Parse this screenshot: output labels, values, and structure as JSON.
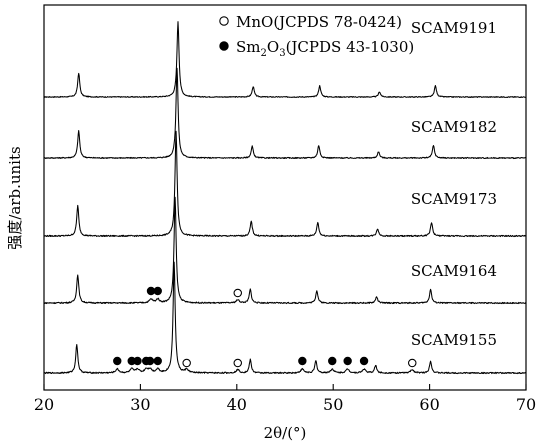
{
  "chart_data": {
    "type": "line",
    "xlabel": "2θ/(°)",
    "ylabel": "强度/arb.units",
    "xlim": [
      20,
      70
    ],
    "xticks": [
      20,
      30,
      40,
      50,
      60,
      70
    ],
    "yticks_shown": false,
    "grid": false,
    "legend_position": "top-center",
    "legend": [
      {
        "label": "MnO(JCPDS 78-0424)",
        "marker": "open-circle"
      },
      {
        "label_main": "Sm",
        "label_sub1": "2",
        "label_mid": "O",
        "label_sub2": "3",
        "label_tail": "(JCPDS 43-1030)",
        "marker": "filled-circle"
      }
    ],
    "series": [
      {
        "name": "SCAM9191",
        "peaks": [
          [
            23.6,
            32
          ],
          [
            33.9,
            100
          ],
          [
            41.7,
            14
          ],
          [
            48.6,
            15
          ],
          [
            54.8,
            7
          ],
          [
            60.6,
            15
          ]
        ],
        "mno_markers": [],
        "sm2o3_markers": []
      },
      {
        "name": "SCAM9182",
        "peaks": [
          [
            23.6,
            30
          ],
          [
            33.8,
            100
          ],
          [
            41.6,
            13
          ],
          [
            48.5,
            14
          ],
          [
            54.7,
            7
          ],
          [
            60.4,
            14
          ]
        ],
        "mno_markers": [],
        "sm2o3_markers": []
      },
      {
        "name": "SCAM9173",
        "peaks": [
          [
            23.5,
            29
          ],
          [
            33.7,
            100
          ],
          [
            41.5,
            14
          ],
          [
            48.4,
            13
          ],
          [
            54.6,
            7
          ],
          [
            60.2,
            13
          ]
        ],
        "mno_markers": [],
        "sm2o3_markers": []
      },
      {
        "name": "SCAM9164",
        "peaks": [
          [
            23.5,
            27
          ],
          [
            33.6,
            100
          ],
          [
            41.4,
            13
          ],
          [
            48.3,
            12
          ],
          [
            54.5,
            6
          ],
          [
            60.1,
            13
          ]
        ],
        "mno_markers": [
          40.1
        ],
        "sm2o3_markers": [
          31.1,
          31.8
        ]
      },
      {
        "name": "SCAM9155",
        "peaks": [
          [
            23.4,
            26
          ],
          [
            33.5,
            100
          ],
          [
            41.4,
            12
          ],
          [
            48.2,
            11
          ],
          [
            54.4,
            7
          ],
          [
            60.1,
            11
          ]
        ],
        "mno_markers": [
          34.8,
          40.1,
          58.2
        ],
        "sm2o3_markers": [
          27.6,
          29.1,
          29.7,
          30.6,
          31.0,
          31.8,
          46.8,
          49.9,
          51.5,
          53.2
        ]
      }
    ]
  }
}
